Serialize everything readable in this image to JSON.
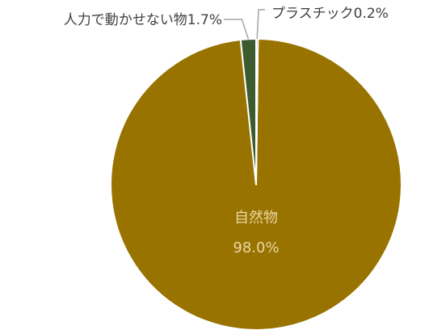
{
  "chart_data": {
    "type": "pie",
    "title": "",
    "slices": [
      {
        "label": "自然物",
        "value": 98.0,
        "value_label": "98.0%",
        "color": "#997300",
        "label_position": "inside"
      },
      {
        "label": "人力で動かせない物",
        "value": 1.7,
        "value_label": "1.7%",
        "color": "#3c5b2e",
        "label_position": "outside-left"
      },
      {
        "label": "プラスチック",
        "value": 0.2,
        "value_label": "0.2%",
        "color": "#6f6f6f",
        "label_position": "outside-right"
      }
    ],
    "slice_border_color": "#ffffff",
    "label_text_color": "#404040",
    "inside_label_color": "#ead7a6",
    "leader_line_color": "#a6a6a6",
    "legend": "none"
  }
}
